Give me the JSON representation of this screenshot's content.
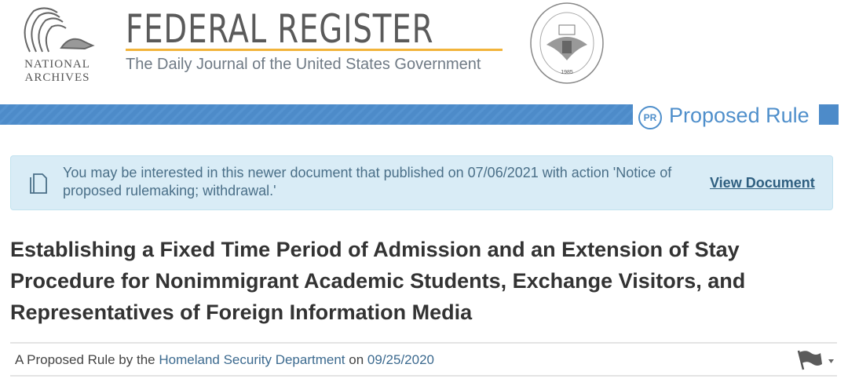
{
  "header": {
    "logo_left_text": [
      "NATIONAL",
      "ARCHIVES"
    ],
    "title": "FEDERAL REGISTER",
    "subtitle": "The Daily Journal of the United States Government",
    "seal_text": "NATIONAL ARCHIVES AND RECORDS ADMINISTRATION",
    "seal_year": "1985"
  },
  "doc_type": {
    "badge": "PR",
    "label": "Proposed Rule",
    "color": "#4f8fcb"
  },
  "notice": {
    "text": "You may be interested in this newer document that published on 07/06/2021 with action 'Notice of proposed rulemaking; withdrawal.'",
    "link": "View Document",
    "icon": "document-icon"
  },
  "title": "Establishing a Fixed Time Period of Admission and an Extension of Stay Procedure for Nonimmigrant Academic Students, Exchange Visitors, and Representatives of Foreign Information Media",
  "byline": {
    "prefix": "A Proposed Rule by the",
    "agency": "Homeland Security Department",
    "on": "on",
    "date": "09/25/2020",
    "icon": "flag-icon"
  }
}
